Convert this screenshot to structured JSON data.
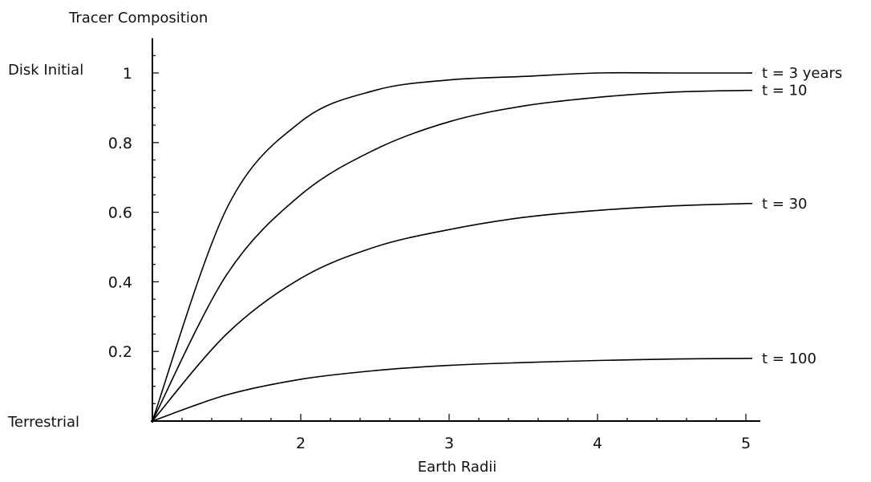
{
  "chart_data": {
    "type": "line",
    "title": "",
    "ylabel": "Tracer Composition",
    "xlabel": "Earth Radii",
    "y_top_label": "Disk Initial",
    "y_bottom_label": "Terrestrial",
    "xlim": [
      1,
      5
    ],
    "ylim": [
      0,
      1.1
    ],
    "x_ticks": [
      2,
      3,
      4,
      5
    ],
    "x_tick_labels": [
      "2",
      "3",
      "4",
      "5"
    ],
    "y_ticks": [
      0.2,
      0.4,
      0.6,
      0.8,
      1
    ],
    "y_tick_labels": [
      "0.2",
      "0.4",
      "0.6",
      "0.8",
      "1"
    ],
    "grid": false,
    "x": [
      1.0,
      1.5,
      2.0,
      2.5,
      3.0,
      3.5,
      4.0,
      4.5,
      5.0
    ],
    "series": [
      {
        "name": "t = 3 years",
        "values": [
          0.0,
          0.61,
          0.86,
          0.95,
          0.98,
          0.99,
          1.0,
          1.0,
          1.0
        ]
      },
      {
        "name": "t = 10",
        "values": [
          0.0,
          0.42,
          0.65,
          0.78,
          0.86,
          0.905,
          0.93,
          0.945,
          0.95
        ]
      },
      {
        "name": "t = 30",
        "values": [
          0.0,
          0.25,
          0.41,
          0.5,
          0.55,
          0.585,
          0.605,
          0.618,
          0.625
        ]
      },
      {
        "name": "t = 100",
        "values": [
          0.0,
          0.075,
          0.12,
          0.145,
          0.16,
          0.168,
          0.174,
          0.178,
          0.18
        ]
      }
    ]
  }
}
